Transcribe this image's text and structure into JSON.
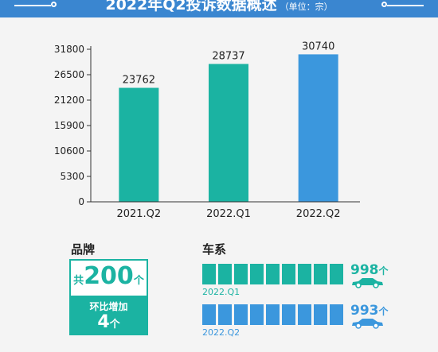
{
  "header": {
    "title": "2022年Q2投诉数据概述",
    "unit": "（单位：宗）",
    "color": "#3a86d0"
  },
  "chart_data": {
    "type": "bar",
    "title": "2022年Q2投诉数据概述",
    "unit": "（单位：宗）",
    "categories": [
      "2021.Q2",
      "2022.Q1",
      "2022.Q2"
    ],
    "values": [
      23762,
      28737,
      30740
    ],
    "bar_colors": [
      "#1bb3a2",
      "#1bb3a2",
      "#3b97dd"
    ],
    "ylim": [
      0,
      31800
    ],
    "yticks": [
      0,
      5300,
      10600,
      15900,
      21200,
      26500,
      31800
    ],
    "grid": false,
    "xlabel": "",
    "ylabel": ""
  },
  "brand": {
    "title": "品牌",
    "prefix": "共",
    "count": "200",
    "suffix": "个",
    "change_label": "环比增加",
    "change_value": "4",
    "change_suffix": "个"
  },
  "car_series": {
    "title": "车系",
    "rows": [
      {
        "label": "2022.Q1",
        "count": "998",
        "suffix": "个",
        "color": "#1bb3a2"
      },
      {
        "label": "2022.Q2",
        "count": "993",
        "suffix": "个",
        "color": "#3b97dd"
      }
    ]
  }
}
